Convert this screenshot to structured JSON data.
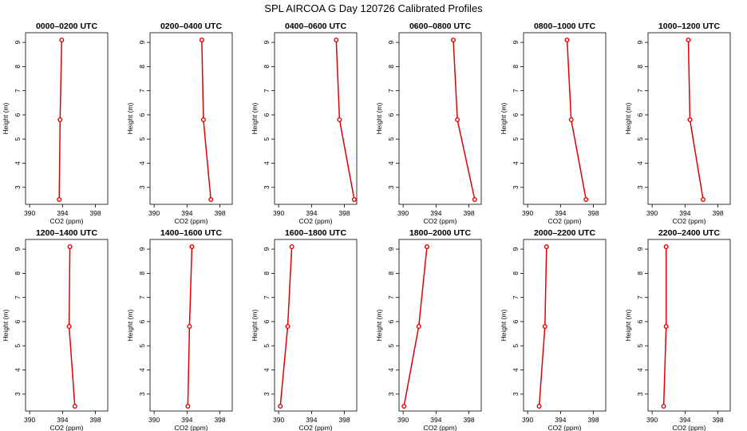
{
  "figure": {
    "title": "SPL AIRCOA G  Day 120726  Calibrated Profiles"
  },
  "colors": {
    "series": "#e00000",
    "axes": "#000000",
    "background": "#ffffff"
  },
  "chart_data": [
    {
      "type": "line",
      "title": "0000–0200 UTC",
      "xlabel": "CO2 (ppm)",
      "ylabel": "Height (m)",
      "xlim": [
        389.5,
        399.5
      ],
      "ylim": [
        2.3,
        9.4
      ],
      "xticks": [
        "390",
        "394",
        "398"
      ],
      "yticks": [
        "3",
        "4",
        "5",
        "6",
        "7",
        "8",
        "9"
      ],
      "y": [
        2.5,
        5.8,
        9.1
      ],
      "x": [
        393.6,
        393.7,
        393.9
      ]
    },
    {
      "type": "line",
      "title": "0200–0400 UTC",
      "xlabel": "CO2 (ppm)",
      "ylabel": "Height (m)",
      "xlim": [
        389.5,
        399.5
      ],
      "ylim": [
        2.3,
        9.4
      ],
      "xticks": [
        "390",
        "394",
        "398"
      ],
      "yticks": [
        "3",
        "4",
        "5",
        "6",
        "7",
        "8",
        "9"
      ],
      "y": [
        2.5,
        5.8,
        9.1
      ],
      "x": [
        396.9,
        396.0,
        395.8
      ]
    },
    {
      "type": "line",
      "title": "0400–0600 UTC",
      "xlabel": "CO2 (ppm)",
      "ylabel": "Height (m)",
      "xlim": [
        389.5,
        399.5
      ],
      "ylim": [
        2.3,
        9.4
      ],
      "xticks": [
        "390",
        "394",
        "398"
      ],
      "yticks": [
        "3",
        "4",
        "5",
        "6",
        "7",
        "8",
        "9"
      ],
      "y": [
        2.5,
        5.8,
        9.1
      ],
      "x": [
        399.2,
        397.4,
        397.0
      ]
    },
    {
      "type": "line",
      "title": "0600–0800 UTC",
      "xlabel": "CO2 (ppm)",
      "ylabel": "Height (m)",
      "xlim": [
        389.5,
        399.5
      ],
      "ylim": [
        2.3,
        9.4
      ],
      "xticks": [
        "390",
        "394",
        "398"
      ],
      "yticks": [
        "3",
        "4",
        "5",
        "6",
        "7",
        "8",
        "9"
      ],
      "y": [
        2.5,
        5.8,
        9.1
      ],
      "x": [
        398.7,
        396.6,
        396.1
      ]
    },
    {
      "type": "line",
      "title": "0800–1000 UTC",
      "xlabel": "CO2 (ppm)",
      "ylabel": "Height (m)",
      "xlim": [
        389.5,
        399.5
      ],
      "ylim": [
        2.3,
        9.4
      ],
      "xticks": [
        "390",
        "394",
        "398"
      ],
      "yticks": [
        "3",
        "4",
        "5",
        "6",
        "7",
        "8",
        "9"
      ],
      "y": [
        2.5,
        5.8,
        9.1
      ],
      "x": [
        397.1,
        395.3,
        394.8
      ]
    },
    {
      "type": "line",
      "title": "1000–1200 UTC",
      "xlabel": "CO2 (ppm)",
      "ylabel": "Height (m)",
      "xlim": [
        389.5,
        399.5
      ],
      "ylim": [
        2.3,
        9.4
      ],
      "xticks": [
        "390",
        "394",
        "398"
      ],
      "yticks": [
        "3",
        "4",
        "5",
        "6",
        "7",
        "8",
        "9"
      ],
      "y": [
        2.5,
        5.8,
        9.1
      ],
      "x": [
        396.2,
        394.6,
        394.4
      ]
    },
    {
      "type": "line",
      "title": "1200–1400 UTC",
      "xlabel": "CO2 (ppm)",
      "ylabel": "Height (m)",
      "xlim": [
        389.5,
        399.5
      ],
      "ylim": [
        2.3,
        9.4
      ],
      "xticks": [
        "390",
        "394",
        "398"
      ],
      "yticks": [
        "3",
        "4",
        "5",
        "6",
        "7",
        "8",
        "9"
      ],
      "y": [
        2.5,
        5.8,
        9.1
      ],
      "x": [
        395.5,
        394.8,
        394.9
      ]
    },
    {
      "type": "line",
      "title": "1400–1600 UTC",
      "xlabel": "CO2 (ppm)",
      "ylabel": "Height (m)",
      "xlim": [
        389.5,
        399.5
      ],
      "ylim": [
        2.3,
        9.4
      ],
      "xticks": [
        "390",
        "394",
        "398"
      ],
      "yticks": [
        "3",
        "4",
        "5",
        "6",
        "7",
        "8",
        "9"
      ],
      "y": [
        2.5,
        5.8,
        9.1
      ],
      "x": [
        394.1,
        394.3,
        394.6
      ]
    },
    {
      "type": "line",
      "title": "1600–1800 UTC",
      "xlabel": "CO2 (ppm)",
      "ylabel": "Height (m)",
      "xlim": [
        389.5,
        399.5
      ],
      "ylim": [
        2.3,
        9.4
      ],
      "xticks": [
        "390",
        "394",
        "398"
      ],
      "yticks": [
        "3",
        "4",
        "5",
        "6",
        "7",
        "8",
        "9"
      ],
      "y": [
        2.5,
        5.8,
        9.1
      ],
      "x": [
        390.2,
        391.1,
        391.6
      ]
    },
    {
      "type": "line",
      "title": "1800–2000 UTC",
      "xlabel": "CO2 (ppm)",
      "ylabel": "Height (m)",
      "xlim": [
        389.5,
        399.5
      ],
      "ylim": [
        2.3,
        9.4
      ],
      "xticks": [
        "390",
        "394",
        "398"
      ],
      "yticks": [
        "3",
        "4",
        "5",
        "6",
        "7",
        "8",
        "9"
      ],
      "y": [
        2.5,
        5.8,
        9.1
      ],
      "x": [
        390.1,
        391.9,
        392.9
      ]
    },
    {
      "type": "line",
      "title": "2000–2200 UTC",
      "xlabel": "CO2 (ppm)",
      "ylabel": "Height (m)",
      "xlim": [
        389.5,
        399.5
      ],
      "ylim": [
        2.3,
        9.4
      ],
      "xticks": [
        "390",
        "394",
        "398"
      ],
      "yticks": [
        "3",
        "4",
        "5",
        "6",
        "7",
        "8",
        "9"
      ],
      "y": [
        2.5,
        5.8,
        9.1
      ],
      "x": [
        391.4,
        392.1,
        392.3
      ]
    },
    {
      "type": "line",
      "title": "2200–2400 UTC",
      "xlabel": "CO2 (ppm)",
      "ylabel": "Height (m)",
      "xlim": [
        389.5,
        399.5
      ],
      "ylim": [
        2.3,
        9.4
      ],
      "xticks": [
        "390",
        "394",
        "398"
      ],
      "yticks": [
        "3",
        "4",
        "5",
        "6",
        "7",
        "8",
        "9"
      ],
      "y": [
        2.5,
        5.8,
        9.1
      ],
      "x": [
        391.4,
        391.7,
        391.7
      ]
    }
  ]
}
